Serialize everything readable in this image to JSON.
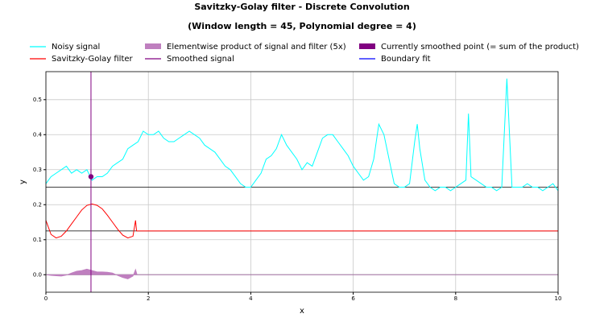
{
  "chart_data": {
    "type": "line",
    "title": "Savitzky-Golay filter - Discrete Convolution",
    "subtitle": "(Window length = 45, Polynomial degree = 4)",
    "x_label": "x",
    "y_label": "y",
    "xlim": [
      0,
      10
    ],
    "ylim": [
      -0.05,
      0.58
    ],
    "xticks": [
      0,
      2,
      4,
      6,
      8,
      10
    ],
    "yticks": [
      {
        "value": 0,
        "label": "0.0"
      },
      0.1,
      0.2,
      0.3,
      0.4,
      0.5
    ],
    "grid": true,
    "legend": "top",
    "hlines": [
      0.25,
      0.125,
      0
    ],
    "series": [
      {
        "name": "Noisy signal",
        "color": "#00ffff",
        "kind": "line",
        "x": [
          0,
          0.1,
          0.2,
          0.3,
          0.4,
          0.5,
          0.6,
          0.7,
          0.8,
          0.9,
          1.0,
          1.1,
          1.2,
          1.3,
          1.4,
          1.5,
          1.6,
          1.7,
          1.8,
          1.9,
          2.0,
          2.1,
          2.2,
          2.3,
          2.4,
          2.5,
          2.6,
          2.7,
          2.8,
          2.9,
          3.0,
          3.1,
          3.2,
          3.3,
          3.4,
          3.5,
          3.6,
          3.7,
          3.8,
          3.9,
          4.0,
          4.1,
          4.2,
          4.3,
          4.4,
          4.5,
          4.6,
          4.7,
          4.8,
          4.9,
          5.0,
          5.1,
          5.2,
          5.3,
          5.4,
          5.5,
          5.6,
          5.7,
          5.8,
          5.9,
          6.0,
          6.1,
          6.2,
          6.3,
          6.4,
          6.5,
          6.6,
          6.7,
          6.8,
          6.9,
          7.0,
          7.1,
          7.2,
          7.25,
          7.3,
          7.4,
          7.5,
          7.6,
          7.7,
          7.8,
          7.9,
          8.0,
          8.1,
          8.2,
          8.25,
          8.3,
          8.4,
          8.5,
          8.6,
          8.7,
          8.8,
          8.9,
          9.0,
          9.1,
          9.2,
          9.3,
          9.4,
          9.5,
          9.6,
          9.7,
          9.8,
          9.9,
          10.0
        ],
        "values": [
          0.26,
          0.28,
          0.29,
          0.3,
          0.31,
          0.29,
          0.3,
          0.29,
          0.3,
          0.27,
          0.28,
          0.28,
          0.29,
          0.31,
          0.32,
          0.33,
          0.36,
          0.37,
          0.38,
          0.41,
          0.4,
          0.4,
          0.41,
          0.39,
          0.38,
          0.38,
          0.39,
          0.4,
          0.41,
          0.4,
          0.39,
          0.37,
          0.36,
          0.35,
          0.33,
          0.31,
          0.3,
          0.28,
          0.26,
          0.25,
          0.25,
          0.27,
          0.29,
          0.33,
          0.34,
          0.36,
          0.4,
          0.37,
          0.35,
          0.33,
          0.3,
          0.32,
          0.31,
          0.35,
          0.39,
          0.4,
          0.4,
          0.38,
          0.36,
          0.34,
          0.31,
          0.29,
          0.27,
          0.28,
          0.33,
          0.43,
          0.4,
          0.33,
          0.26,
          0.25,
          0.25,
          0.26,
          0.38,
          0.43,
          0.36,
          0.27,
          0.25,
          0.24,
          0.25,
          0.25,
          0.24,
          0.25,
          0.26,
          0.27,
          0.46,
          0.28,
          0.27,
          0.26,
          0.25,
          0.25,
          0.24,
          0.25,
          0.56,
          0.25,
          0.25,
          0.25,
          0.26,
          0.25,
          0.25,
          0.24,
          0.25,
          0.26,
          0.24
        ]
      },
      {
        "name": "Savitzky-Golay filter",
        "color": "#ff0000",
        "kind": "line",
        "x": [
          0,
          0.1,
          0.2,
          0.3,
          0.4,
          0.5,
          0.6,
          0.7,
          0.8,
          0.9,
          1.0,
          1.1,
          1.2,
          1.3,
          1.4,
          1.5,
          1.6,
          1.7,
          1.75,
          1.77,
          10
        ],
        "values": [
          0.155,
          0.115,
          0.105,
          0.11,
          0.125,
          0.145,
          0.165,
          0.185,
          0.198,
          0.202,
          0.198,
          0.188,
          0.17,
          0.15,
          0.13,
          0.113,
          0.105,
          0.11,
          0.155,
          0.125,
          0.125
        ]
      },
      {
        "name": "Elementwise product of signal and filter (5x)",
        "color": "#bf7fbf",
        "kind": "area",
        "x": [
          0,
          0.1,
          0.2,
          0.3,
          0.4,
          0.5,
          0.6,
          0.7,
          0.8,
          0.9,
          1.0,
          1.1,
          1.2,
          1.3,
          1.4,
          1.5,
          1.6,
          1.7,
          1.75,
          1.78,
          10
        ],
        "values": [
          0,
          -0.002,
          -0.003,
          -0.004,
          -0.001,
          0.005,
          0.01,
          0.012,
          0.016,
          0.012,
          0.008,
          0.008,
          0.007,
          0.005,
          -0.002,
          -0.008,
          -0.012,
          -0.004,
          0.015,
          0,
          0
        ]
      },
      {
        "name": "Smoothed signal",
        "color": "#800080",
        "kind": "line",
        "x": [
          0.88
        ],
        "values": [
          0.28
        ]
      },
      {
        "name": "Currently smoothed point (= sum of the product)",
        "color": "#800080",
        "kind": "point",
        "x": [
          0.88
        ],
        "values": [
          0.28
        ]
      },
      {
        "name": "Boundary fit",
        "color": "#0000ff",
        "kind": "line",
        "x": [],
        "values": []
      }
    ]
  }
}
